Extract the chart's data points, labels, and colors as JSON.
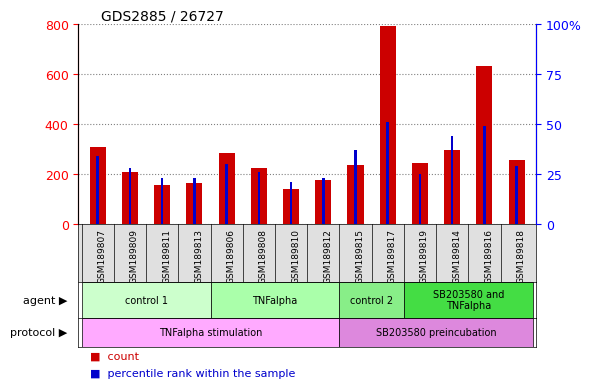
{
  "title": "GDS2885 / 26727",
  "samples": [
    "GSM189807",
    "GSM189809",
    "GSM189811",
    "GSM189813",
    "GSM189806",
    "GSM189808",
    "GSM189810",
    "GSM189812",
    "GSM189815",
    "GSM189817",
    "GSM189819",
    "GSM189814",
    "GSM189816",
    "GSM189818"
  ],
  "counts": [
    310,
    210,
    155,
    165,
    285,
    225,
    140,
    175,
    235,
    795,
    245,
    295,
    635,
    255
  ],
  "percentile_vals": [
    34,
    28,
    23,
    23,
    30,
    26,
    21,
    23,
    37,
    51,
    25,
    44,
    49,
    29
  ],
  "ylim_left": [
    0,
    800
  ],
  "ylim_right": [
    0,
    100
  ],
  "yticks_left": [
    0,
    200,
    400,
    600,
    800
  ],
  "yticks_right": [
    0,
    25,
    50,
    75,
    100
  ],
  "bar_color": "#cc0000",
  "pct_color": "#0000cc",
  "agent_groups": [
    {
      "label": "control 1",
      "start": 0,
      "end": 4,
      "color": "#ccffcc"
    },
    {
      "label": "TNFalpha",
      "start": 4,
      "end": 8,
      "color": "#aaffaa"
    },
    {
      "label": "control 2",
      "start": 8,
      "end": 10,
      "color": "#88ee88"
    },
    {
      "label": "SB203580 and\nTNFalpha",
      "start": 10,
      "end": 14,
      "color": "#44dd44"
    }
  ],
  "protocol_groups": [
    {
      "label": "TNFalpha stimulation",
      "start": 0,
      "end": 8,
      "color": "#ffaaff"
    },
    {
      "label": "SB203580 preincubation",
      "start": 8,
      "end": 14,
      "color": "#dd88dd"
    }
  ],
  "legend_count_label": "count",
  "legend_pct_label": "percentile rank within the sample"
}
